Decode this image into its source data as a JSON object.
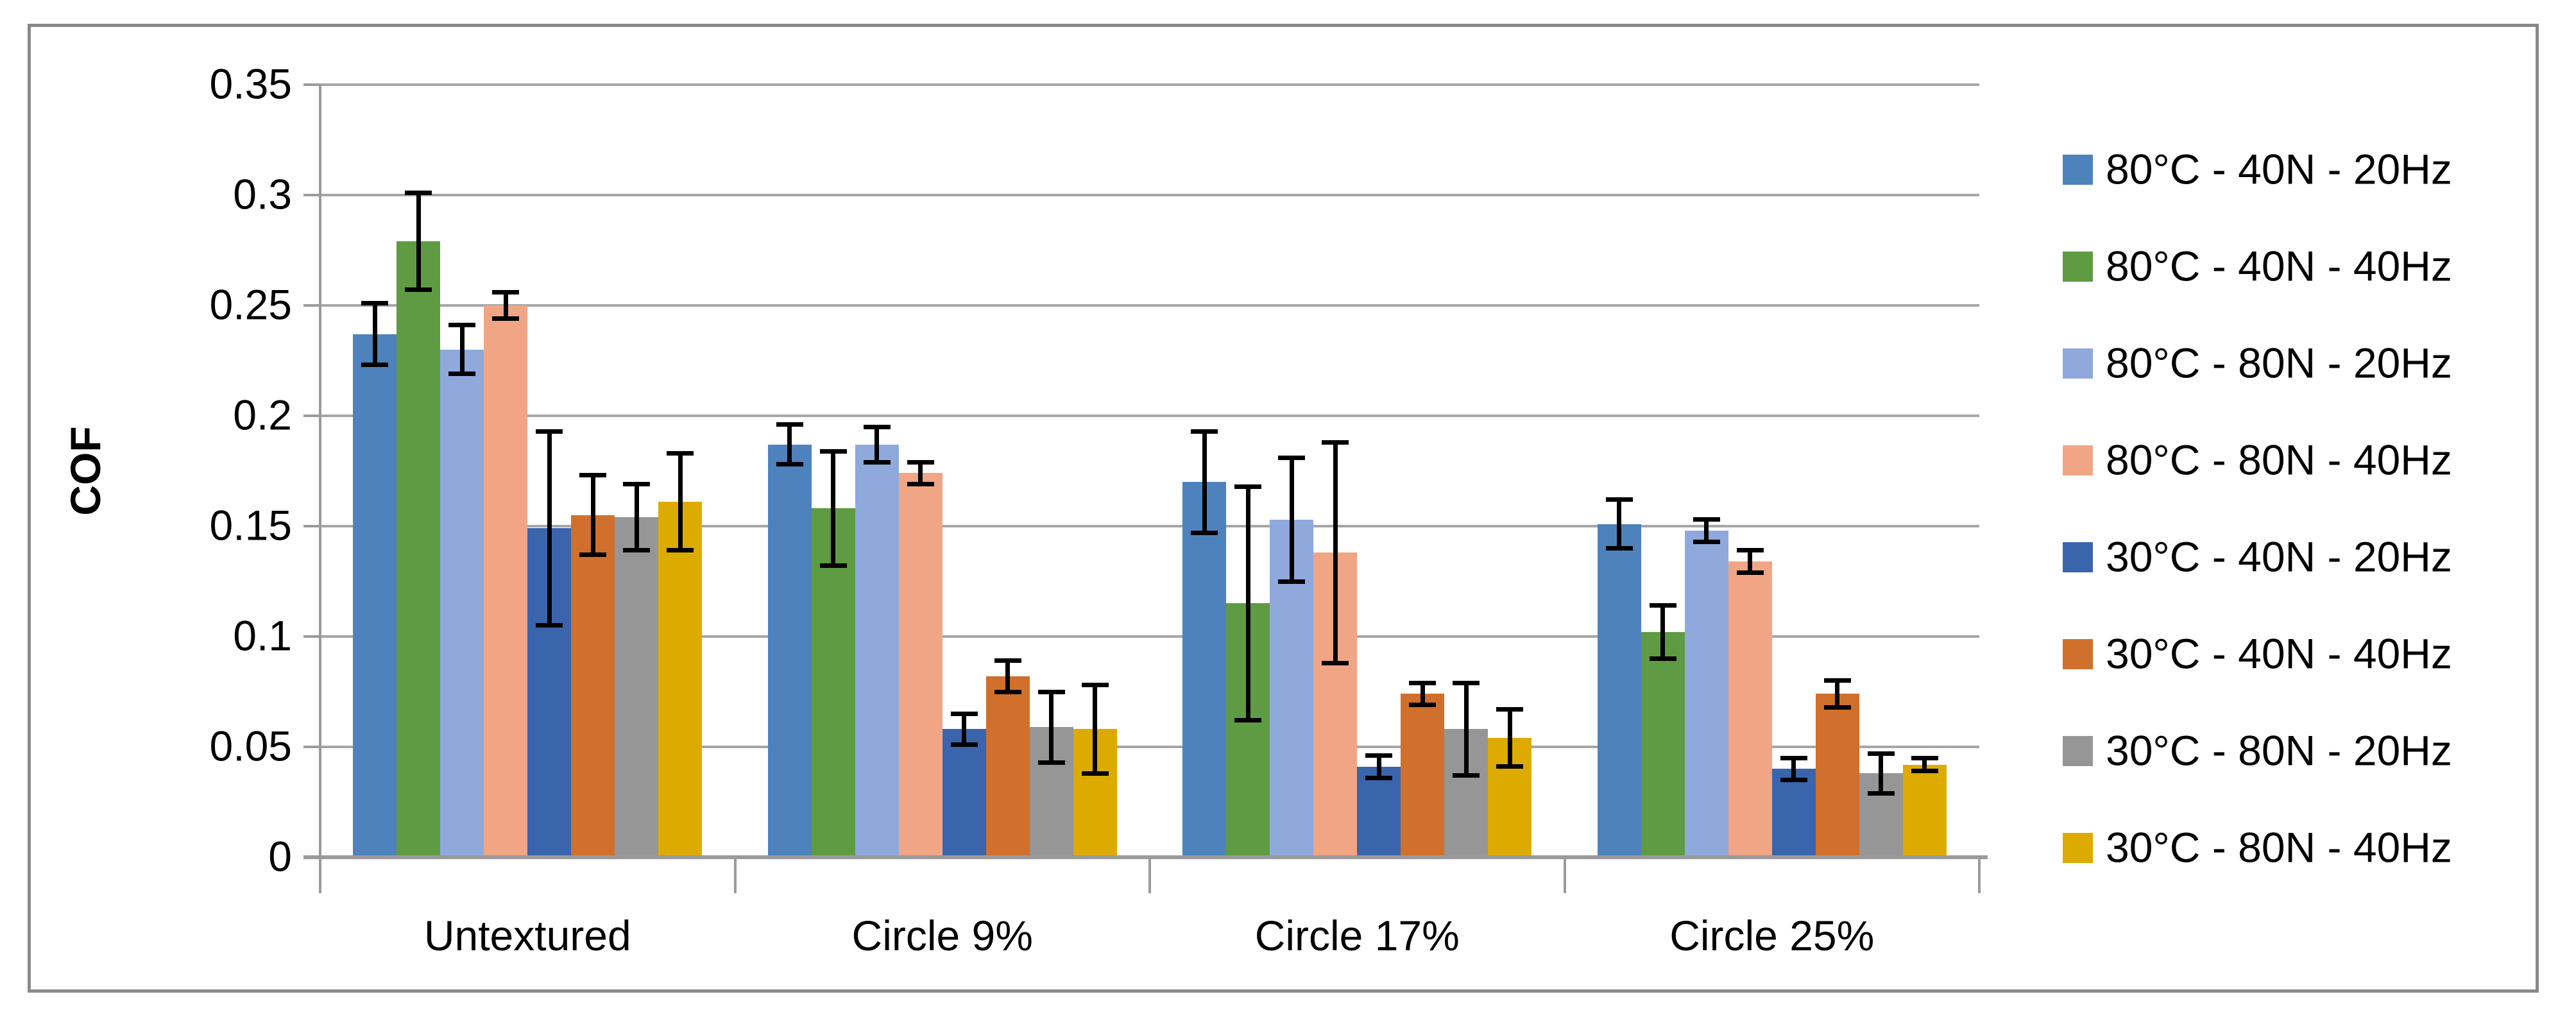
{
  "chart_data": {
    "type": "bar",
    "title": "",
    "xlabel": "",
    "ylabel": "COF",
    "ylim": [
      0,
      0.35
    ],
    "grid": true,
    "legend_position": "right",
    "yticks": {
      "values": [
        0.35,
        0.3,
        0.25,
        0.2,
        0.15,
        0.1,
        0.05,
        0
      ],
      "labels": [
        "0.35",
        "0.3",
        "0.25",
        "0.2",
        "0.15",
        "0.1",
        "0.05",
        "0"
      ]
    },
    "categories": [
      "Untextured",
      "Circle 9%",
      "Circle 17%",
      "Circle 25%"
    ],
    "series": [
      {
        "name": "80°C - 40N - 20Hz",
        "color": "#4e82bc",
        "values": [
          0.237,
          0.187,
          0.17,
          0.151
        ],
        "errors": [
          0.014,
          0.009,
          0.023,
          0.011
        ]
      },
      {
        "name": "80°C - 40N - 40Hz",
        "color": "#5f9b42",
        "values": [
          0.279,
          0.158,
          0.115,
          0.102
        ],
        "errors": [
          0.022,
          0.026,
          0.053,
          0.012
        ]
      },
      {
        "name": "80°C - 80N - 20Hz",
        "color": "#8fa9dc",
        "values": [
          0.23,
          0.187,
          0.153,
          0.148
        ],
        "errors": [
          0.011,
          0.008,
          0.028,
          0.005
        ]
      },
      {
        "name": "80°C - 80N - 40Hz",
        "color": "#f0a685",
        "values": [
          0.25,
          0.174,
          0.138,
          0.134
        ],
        "errors": [
          0.006,
          0.005,
          0.05,
          0.005
        ]
      },
      {
        "name": "30°C - 40N - 20Hz",
        "color": "#3a65ad",
        "values": [
          0.149,
          0.058,
          0.041,
          0.04
        ],
        "errors": [
          0.044,
          0.007,
          0.005,
          0.005
        ]
      },
      {
        "name": "30°C - 40N - 40Hz",
        "color": "#d0702c",
        "values": [
          0.155,
          0.082,
          0.074,
          0.074
        ],
        "errors": [
          0.018,
          0.007,
          0.005,
          0.006
        ]
      },
      {
        "name": "30°C - 80N - 20Hz",
        "color": "#969696",
        "values": [
          0.154,
          0.059,
          0.058,
          0.038
        ],
        "errors": [
          0.015,
          0.016,
          0.021,
          0.009
        ]
      },
      {
        "name": "30°C - 80N - 40Hz",
        "color": "#ddab00",
        "values": [
          0.161,
          0.058,
          0.054,
          0.042
        ],
        "errors": [
          0.022,
          0.02,
          0.013,
          0.003
        ]
      }
    ],
    "colors": {
      "gridline": "#a6a6a6",
      "axis": "#9b9b9b",
      "frame_border": "#898989",
      "error_bar": "#000000",
      "background": "#ffffff"
    }
  }
}
